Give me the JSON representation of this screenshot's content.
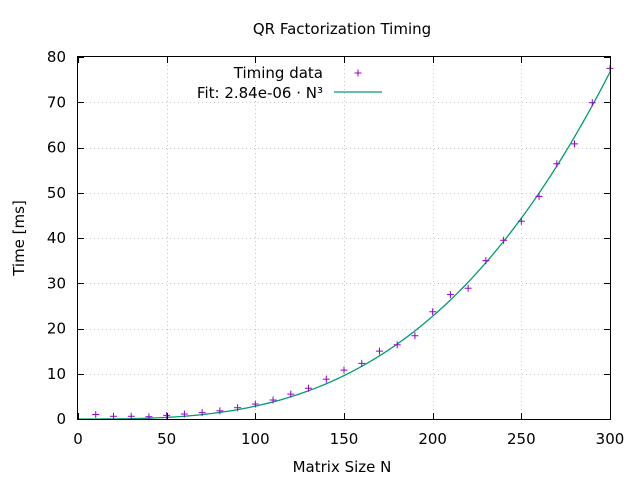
{
  "chart_data": {
    "type": "scatter",
    "title": "QR Factorization Timing",
    "xlabel": "Matrix Size N",
    "ylabel": "Time [ms]",
    "xlim": [
      0,
      300
    ],
    "ylim": [
      0,
      80
    ],
    "x_ticks": [
      0,
      50,
      100,
      150,
      200,
      250,
      300
    ],
    "y_ticks": [
      0,
      10,
      20,
      30,
      40,
      50,
      60,
      70,
      80
    ],
    "grid": true,
    "legend_position": "top-left",
    "series": [
      {
        "name": "Timing data",
        "kind": "points",
        "marker": "+",
        "color": "#9400d3",
        "x": [
          10,
          20,
          30,
          40,
          50,
          60,
          70,
          80,
          90,
          100,
          110,
          120,
          130,
          140,
          150,
          160,
          170,
          180,
          190,
          200,
          210,
          220,
          230,
          240,
          250,
          260,
          270,
          280,
          290,
          300
        ],
        "y": [
          1.0,
          0.6,
          0.6,
          0.5,
          0.8,
          1.1,
          1.4,
          1.8,
          2.5,
          3.3,
          4.2,
          5.5,
          6.8,
          8.8,
          10.8,
          12.3,
          15.0,
          16.4,
          18.4,
          23.7,
          27.5,
          28.9,
          35.0,
          39.5,
          43.7,
          49.2,
          56.4,
          60.8,
          69.9,
          77.5
        ]
      },
      {
        "name": "Fit: 2.84e-06 · N³",
        "kind": "line",
        "color": "#009e73",
        "fit": {
          "coefficient": 2.84e-06,
          "exponent": 3
        }
      }
    ]
  }
}
